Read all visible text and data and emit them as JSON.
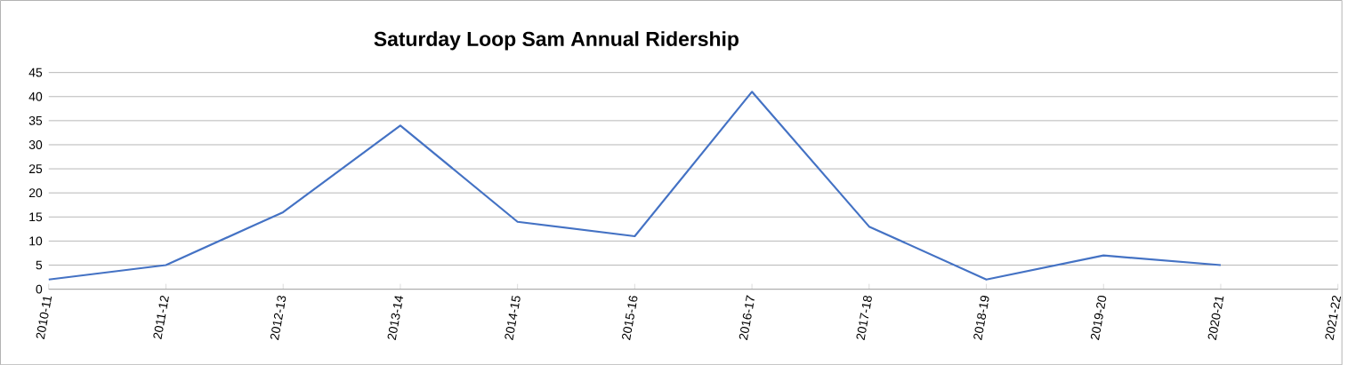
{
  "chart_data": {
    "type": "line",
    "title": "Saturday Loop Sam Annual Ridership",
    "categories": [
      "2010-11",
      "2011-12",
      "2012-13",
      "2013-14",
      "2014-15",
      "2015-16",
      "2016-17",
      "2017-18",
      "2018-19",
      "2019-20",
      "2020-21",
      "2021-22"
    ],
    "values": [
      2,
      5,
      16,
      34,
      14,
      11,
      41,
      13,
      2,
      7,
      5,
      null
    ],
    "color": "#4472c4",
    "ylim": [
      0,
      45
    ],
    "yticks": [
      0,
      5,
      10,
      15,
      20,
      25,
      30,
      35,
      40,
      45
    ],
    "grid": "y",
    "marker": "none",
    "line_style": "solid"
  }
}
